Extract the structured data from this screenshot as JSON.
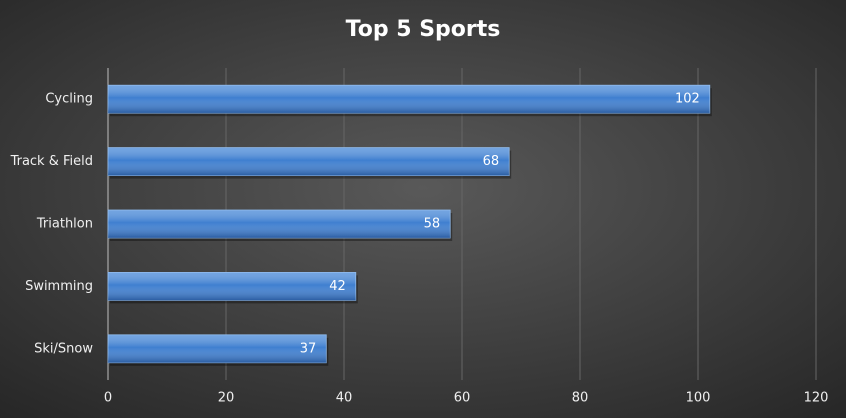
{
  "chart_data": {
    "type": "bar",
    "orientation": "horizontal",
    "title": "Top 5 Sports",
    "categories": [
      "Cycling",
      "Track & Field",
      "Triathlon",
      "Swimming",
      "Ski/Snow"
    ],
    "values": [
      102,
      68,
      58,
      42,
      37
    ],
    "color": "#3f7fd0",
    "xlim": [
      0,
      120
    ],
    "xticks": [
      0,
      20,
      40,
      60,
      80,
      100,
      120
    ],
    "grid": true
  }
}
